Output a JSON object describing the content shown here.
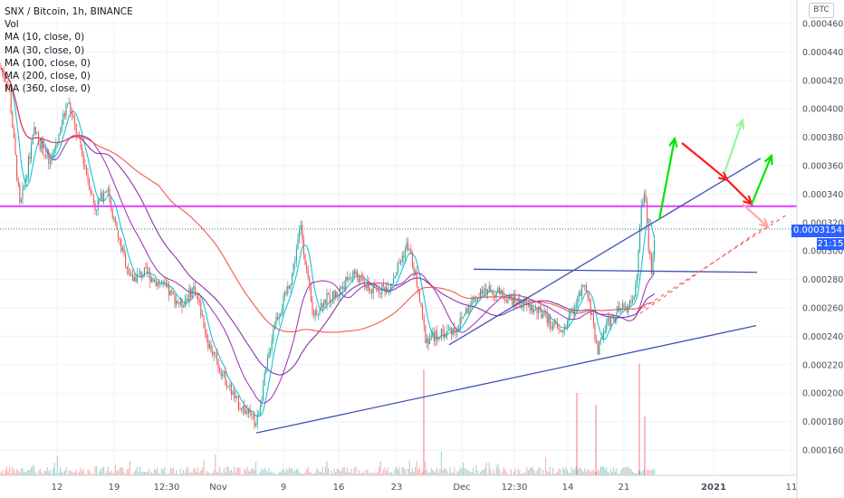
{
  "header": {
    "symbol_line": "SNX / Bitcoin, 1h, BINANCE",
    "indicators": [
      "Vol",
      "MA (10, close, 0)",
      "MA (30, close, 0)",
      "MA (100, close, 0)",
      "MA (200, close, 0)",
      "MA (360, close, 0)"
    ]
  },
  "scale_badge": "BTC",
  "last_price_tag": "0.0003154",
  "countdown_tag": "21:15",
  "colors": {
    "candle_up": "#26a69a",
    "candle_down": "#ef5350",
    "ma10": "#00bcd4",
    "ma30": "#9c27b0",
    "ma100": "#7b1fa2",
    "ma200": "#f44336",
    "resistance": "#e040fb",
    "trendline": "#3f51b5",
    "arrow_up": "#00e600",
    "arrow_down": "#ff1a1a",
    "accent": "#2962ff"
  },
  "chart_data": {
    "type": "candlestick",
    "y_axis": {
      "ticks": [
        0.00046,
        0.00044,
        0.00042,
        0.0004,
        0.00038,
        0.00036,
        0.00034,
        0.00032,
        0.0003,
        0.00028,
        0.00026,
        0.00024,
        0.00022,
        0.0002,
        0.00018,
        0.00016
      ],
      "tick_labels": [
        "0.0004600",
        "0.0004400",
        "0.0004200",
        "0.0004000",
        "0.0003800",
        "0.0003600",
        "0.0003400",
        "0.0003200",
        "0.0003000",
        "0.0002800",
        "0.0002600",
        "0.0002400",
        "0.0002200",
        "0.0002000",
        "0.0001800",
        "0.0001600"
      ]
    },
    "x_axis": {
      "tick_labels": [
        "12",
        "19",
        "12:30",
        "Nov",
        "9",
        "16",
        "23",
        "Dec",
        "12:30",
        "14",
        "21",
        "2021",
        "11"
      ],
      "tick_bold": [
        false,
        false,
        false,
        false,
        false,
        false,
        false,
        false,
        false,
        false,
        false,
        true,
        false
      ]
    },
    "price_path": [
      [
        0,
        0.00043
      ],
      [
        10,
        0.000415
      ],
      [
        22,
        0.00033
      ],
      [
        38,
        0.000385
      ],
      [
        55,
        0.00036
      ],
      [
        75,
        0.000405
      ],
      [
        90,
        0.00037
      ],
      [
        105,
        0.00033
      ],
      [
        118,
        0.000345
      ],
      [
        130,
        0.00031
      ],
      [
        145,
        0.00028
      ],
      [
        160,
        0.000285
      ],
      [
        180,
        0.000275
      ],
      [
        200,
        0.000262
      ],
      [
        215,
        0.000275
      ],
      [
        230,
        0.000235
      ],
      [
        245,
        0.000215
      ],
      [
        260,
        0.000195
      ],
      [
        275,
        0.000185
      ],
      [
        283,
        0.000178
      ],
      [
        295,
        0.00022
      ],
      [
        303,
        0.00025
      ],
      [
        312,
        0.000262
      ],
      [
        322,
        0.000282
      ],
      [
        332,
        0.000318
      ],
      [
        345,
        0.000255
      ],
      [
        358,
        0.000265
      ],
      [
        372,
        0.00027
      ],
      [
        390,
        0.000285
      ],
      [
        410,
        0.000272
      ],
      [
        430,
        0.000275
      ],
      [
        450,
        0.000305
      ],
      [
        460,
        0.000278
      ],
      [
        470,
        0.000238
      ],
      [
        490,
        0.000242
      ],
      [
        505,
        0.000246
      ],
      [
        520,
        0.000265
      ],
      [
        540,
        0.000273
      ],
      [
        560,
        0.000267
      ],
      [
        580,
        0.000262
      ],
      [
        600,
        0.000255
      ],
      [
        620,
        0.000242
      ],
      [
        635,
        0.000262
      ],
      [
        645,
        0.000275
      ],
      [
        652,
        0.00026
      ],
      [
        660,
        0.00023
      ],
      [
        670,
        0.00025
      ],
      [
        685,
        0.000258
      ],
      [
        695,
        0.000262
      ],
      [
        703,
        0.000275
      ],
      [
        708,
        0.00033
      ],
      [
        712,
        0.000345
      ],
      [
        716,
        0.000305
      ],
      [
        720,
        0.000285
      ],
      [
        723,
        0.000315
      ]
    ],
    "volume_spikes": [
      [
        468,
        0.9
      ],
      [
        637,
        0.7
      ],
      [
        658,
        0.6
      ],
      [
        706,
        0.95
      ],
      [
        712,
        0.5
      ]
    ],
    "horizontal_levels": [
      {
        "price": 0.0003315
      },
      {
        "price": 0.0003154
      }
    ],
    "trendlines": [
      {
        "from": [
          283,
          0.000172
        ],
        "to": [
          835,
          0.0002475
        ]
      },
      {
        "from": [
          496,
          0.000234
        ],
        "to": [
          840,
          0.0003652
        ]
      },
      {
        "from": [
          523,
          0.0002872
        ],
        "to": [
          836,
          0.000285
        ]
      }
    ],
    "projected_lines": [
      {
        "from": [
          703,
          0.000257
        ],
        "to": [
          870,
          0.000326
        ]
      },
      {
        "from": [
          700,
          0.000253
        ],
        "to": [
          858,
          0.000323
        ]
      }
    ],
    "projection_arrows": [
      {
        "from": [
          728,
          0.000322
        ],
        "to": [
          745,
          0.000379
        ],
        "kind": "up"
      },
      {
        "from": [
          753,
          0.000376
        ],
        "to": [
          803,
          0.00035
        ],
        "kind": "down"
      },
      {
        "from": [
          803,
          0.00035
        ],
        "to": [
          830,
          0.000333
        ],
        "kind": "down"
      },
      {
        "from": [
          830,
          0.000333
        ],
        "to": [
          852,
          0.000367
        ],
        "kind": "up"
      },
      {
        "from": [
          800,
          0.000355
        ],
        "to": [
          820,
          0.000392
        ],
        "kind": "up_faded"
      },
      {
        "from": [
          820,
          0.000333
        ],
        "to": [
          848,
          0.000317
        ],
        "kind": "down_faded"
      }
    ]
  }
}
